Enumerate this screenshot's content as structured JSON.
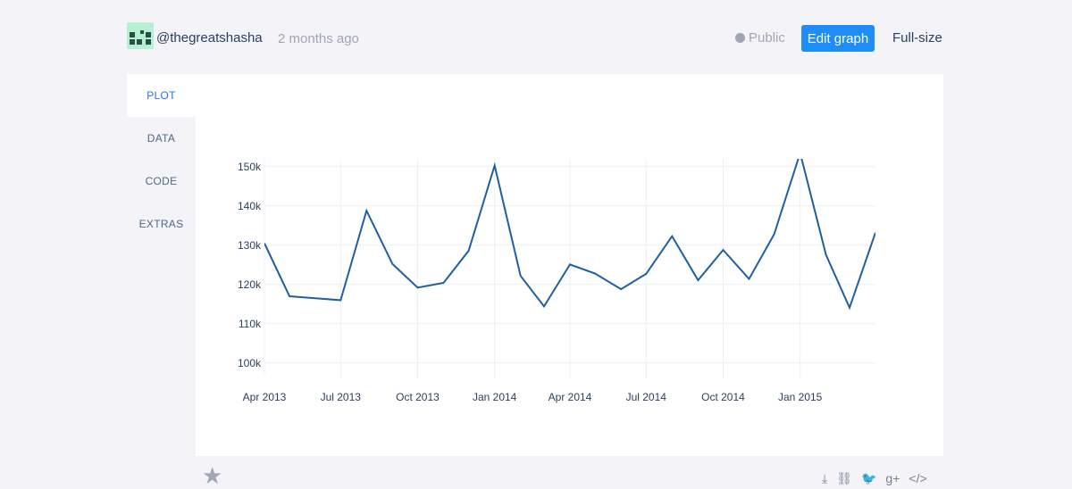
{
  "header": {
    "username": "@thegreatshasha",
    "timestamp": "2 months ago",
    "visibility": "Public",
    "edit_label": "Edit graph",
    "fullsize_label": "Full-size"
  },
  "tabs": [
    {
      "label": "PLOT",
      "active": true
    },
    {
      "label": "DATA",
      "active": false
    },
    {
      "label": "CODE",
      "active": false
    },
    {
      "label": "EXTRAS",
      "active": false
    }
  ],
  "chart_data": {
    "type": "line",
    "x": [
      "2013-04-01",
      "2013-05-01",
      "2013-06-01",
      "2013-07-01",
      "2013-08-01",
      "2013-09-01",
      "2013-10-01",
      "2013-11-01",
      "2013-12-01",
      "2014-01-01",
      "2014-02-01",
      "2014-03-01",
      "2014-04-01",
      "2014-05-01",
      "2014-06-01",
      "2014-07-01",
      "2014-08-01",
      "2014-09-01",
      "2014-10-01",
      "2014-11-01",
      "2014-12-01",
      "2015-01-01",
      "2015-02-01",
      "2015-03-01",
      "2015-04-01"
    ],
    "y": [
      130500,
      117000,
      116500,
      116000,
      138800,
      125200,
      119200,
      120400,
      128600,
      150300,
      122200,
      114400,
      125100,
      122800,
      118800,
      122700,
      132300,
      121100,
      128800,
      121400,
      132800,
      153500,
      127500,
      114100,
      133200
    ],
    "xticks": [
      "Apr 2013",
      "Jul 2013",
      "Oct 2013",
      "Jan 2014",
      "Apr 2014",
      "Jul 2014",
      "Oct 2014",
      "Jan 2015"
    ],
    "yticks": [
      "100k",
      "110k",
      "120k",
      "130k",
      "140k",
      "150k"
    ],
    "ylim": [
      97000,
      152000
    ],
    "grid": true,
    "color": "#1f5fa1"
  },
  "footer": {
    "icons": [
      "star-icon",
      "download-icon",
      "link-icon",
      "twitter-icon",
      "google-plus-icon",
      "embed-icon"
    ],
    "gplus_label": "g+",
    "embed_label": "</>"
  }
}
